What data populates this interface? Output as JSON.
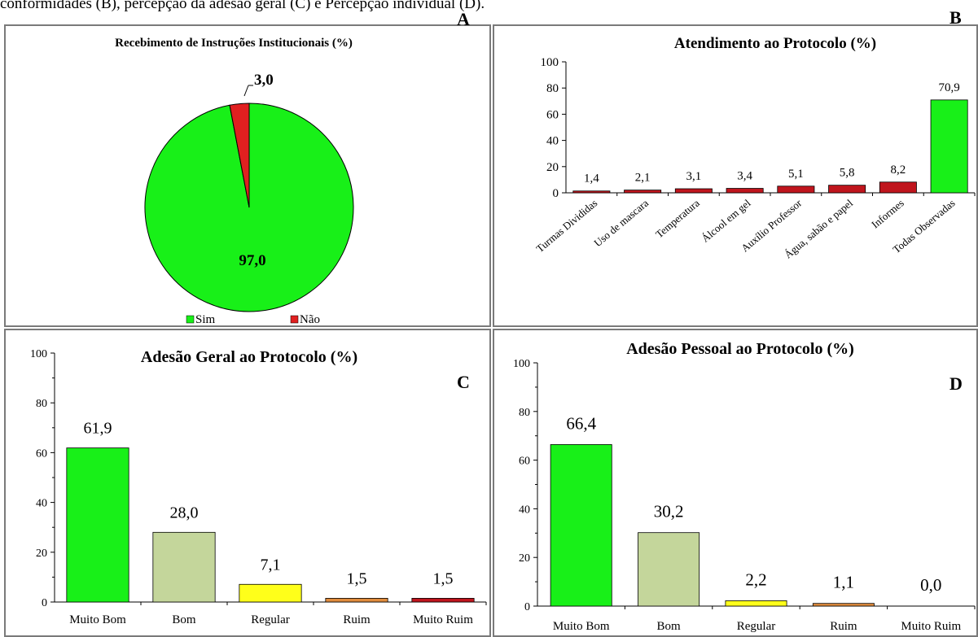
{
  "caption": "conformidades (B), percepção da adesão geral (C) e Percepção individual (D).",
  "chart_data": [
    {
      "panel_letter": "A",
      "type": "pie",
      "title": "Recebimento de Instruções Institucionais (%)",
      "categories": [
        "Sim",
        "Não"
      ],
      "values": [
        97.0,
        3.0
      ],
      "data_labels": [
        "97,0",
        "3,0"
      ],
      "colors": [
        "#18f018",
        "#e02020"
      ],
      "legend": "bottom"
    },
    {
      "panel_letter": "B",
      "type": "bar",
      "title": "Atendimento ao Protocolo (%)",
      "categories": [
        "Turmas Divididas",
        "Uso de mascara",
        "Temperatura",
        "Álcool em gel",
        "Auxílio Professor",
        "Água, sabão e papel",
        "Informes",
        "Todas Observadas"
      ],
      "values": [
        1.4,
        2.1,
        3.1,
        3.4,
        5.1,
        5.8,
        8.2,
        70.9
      ],
      "data_labels": [
        "1,4",
        "2,1",
        "3,1",
        "3,4",
        "5,1",
        "5,8",
        "8,2",
        "70,9"
      ],
      "colors": [
        "#c0151d",
        "#c0151d",
        "#c0151d",
        "#c0151d",
        "#c0151d",
        "#c0151d",
        "#c0151d",
        "#18f018"
      ],
      "yticks": [
        "0",
        "20",
        "40",
        "60",
        "80",
        "100"
      ],
      "ylim": [
        0,
        100
      ]
    },
    {
      "panel_letter": "C",
      "type": "bar",
      "title": "Adesão Geral ao Protocolo (%)",
      "categories": [
        "Muito Bom",
        "Bom",
        "Regular",
        "Ruim",
        "Muito Ruim"
      ],
      "values": [
        61.9,
        28.0,
        7.1,
        1.5,
        1.5
      ],
      "data_labels": [
        "61,9",
        "28,0",
        "7,1",
        "1,5",
        "1,5"
      ],
      "colors": [
        "#18f018",
        "#c4d69b",
        "#ffff1a",
        "#e08b3c",
        "#c0151d"
      ],
      "yticks": [
        "0",
        "20",
        "40",
        "60",
        "80",
        "100"
      ],
      "ylim": [
        0,
        100
      ]
    },
    {
      "panel_letter": "D",
      "type": "bar",
      "title": "Adesão Pessoal ao Protocolo (%)",
      "categories": [
        "Muito Bom",
        "Bom",
        "Regular",
        "Ruim",
        "Muito Ruim"
      ],
      "values": [
        66.4,
        30.2,
        2.2,
        1.1,
        0.0
      ],
      "data_labels": [
        "66,4",
        "30,2",
        "2,2",
        "1,1",
        "0,0"
      ],
      "colors": [
        "#18f018",
        "#c4d69b",
        "#ffff1a",
        "#e08b3c",
        "#c0151d"
      ],
      "yticks": [
        "0",
        "20",
        "40",
        "60",
        "80",
        "100"
      ],
      "ylim": [
        0,
        100
      ]
    }
  ]
}
